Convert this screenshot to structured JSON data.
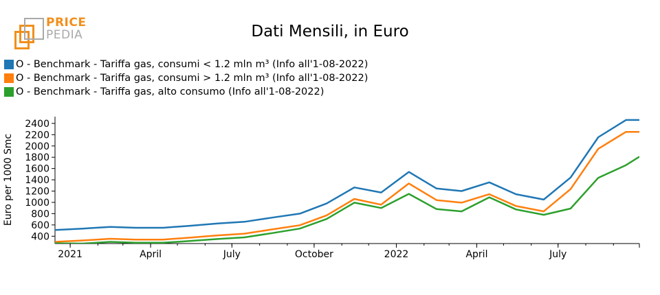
{
  "logo": {
    "line1": "PRICE",
    "line2": "PEDIA",
    "accent_color": "#f18f1c",
    "gray_color": "#a9a9a9"
  },
  "chart_data": {
    "type": "line",
    "title": "Dati Mensili, in Euro",
    "ylabel": "Euro per 1000 Smc",
    "xlabel": "",
    "ylim": [
      270,
      2520
    ],
    "y_ticks": [
      400,
      600,
      800,
      1000,
      1200,
      1400,
      1600,
      1800,
      2000,
      2200,
      2400
    ],
    "x": [
      "2020-12-15",
      "2021-01-15",
      "2021-02-15",
      "2021-03-15",
      "2021-04-15",
      "2021-05-15",
      "2021-06-15",
      "2021-07-15",
      "2021-08-15",
      "2021-09-15",
      "2021-10-15",
      "2021-11-15",
      "2021-12-15",
      "2022-01-15",
      "2022-02-15",
      "2022-03-15",
      "2022-04-15",
      "2022-05-15",
      "2022-06-15",
      "2022-07-15",
      "2022-08-15",
      "2022-09-15",
      "2022-09-30"
    ],
    "xlim": [
      "2020-12-15",
      "2022-09-30"
    ],
    "x_ticks": [
      {
        "date": "2021-01-01",
        "label": "2021"
      },
      {
        "date": "2021-04-01",
        "label": "April"
      },
      {
        "date": "2021-07-01",
        "label": "July"
      },
      {
        "date": "2021-10-01",
        "label": "October"
      },
      {
        "date": "2022-01-01",
        "label": "2022"
      },
      {
        "date": "2022-04-01",
        "label": "April"
      },
      {
        "date": "2022-07-01",
        "label": "July"
      }
    ],
    "legend_position": "top-left",
    "grid": false,
    "series": [
      {
        "name": "O - Benchmark - Tariffa gas, consumi < 1.2 mln m³ (Info all'1-08-2022)",
        "color": "#1f77b4",
        "values": [
          510,
          535,
          565,
          550,
          550,
          585,
          625,
          655,
          730,
          800,
          980,
          1265,
          1175,
          1540,
          1245,
          1200,
          1355,
          1145,
          1050,
          1440,
          2155,
          2460,
          2460
        ]
      },
      {
        "name": "O - Benchmark - Tariffa gas, consumi > 1.2 mln m³ (Info all'1-08-2022)",
        "color": "#ff7f0e",
        "values": [
          300,
          325,
          355,
          340,
          340,
          375,
          415,
          445,
          520,
          595,
          770,
          1060,
          960,
          1335,
          1040,
          995,
          1145,
          935,
          840,
          1235,
          1950,
          2250,
          2250
        ]
      },
      {
        "name": "O - Benchmark - Tariffa gas, alto consumo (Info all'1-08-2022)",
        "color": "#2ca02c",
        "values": [
          275,
          270,
          300,
          285,
          285,
          315,
          350,
          380,
          455,
          535,
          705,
          995,
          900,
          1150,
          880,
          840,
          1090,
          875,
          780,
          890,
          1435,
          1660,
          1810
        ]
      }
    ]
  }
}
